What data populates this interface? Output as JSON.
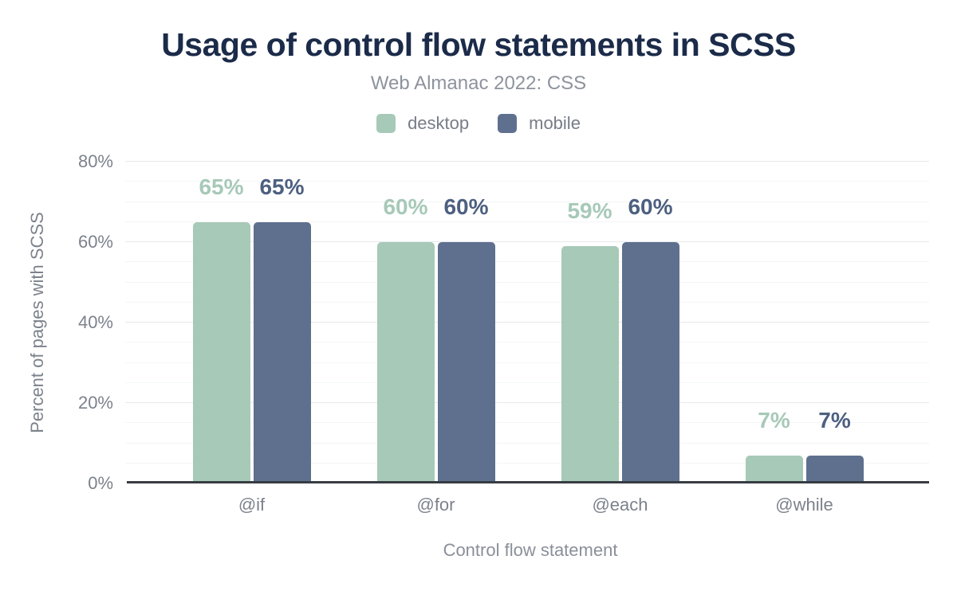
{
  "chart": {
    "title": "Usage of control flow statements in SCSS",
    "subtitle": "Web Almanac 2022: CSS",
    "legend": [
      {
        "label": "desktop",
        "color": "#a7c9b8"
      },
      {
        "label": "mobile",
        "color": "#5e708e"
      }
    ],
    "y_axis": {
      "title": "Percent of pages with SCSS",
      "ticks": [
        "0%",
        "20%",
        "40%",
        "60%",
        "80%"
      ],
      "tick_values": [
        0,
        20,
        40,
        60,
        80
      ]
    },
    "x_axis": {
      "title": "Control flow statement"
    },
    "colors": {
      "title_text": "#1b2b49",
      "subtitle_text": "#8d939d",
      "axis_text": "#7c828c",
      "axis_line": "#363c41",
      "gridline_major": "#e7e9ec",
      "gridline_minor": "#f4f5f7",
      "desktop_bar": "#a7c9b8",
      "mobile_bar": "#5e708e",
      "desktop_label": "#a7c9b8",
      "mobile_label": "#4d6080"
    }
  },
  "chart_data": {
    "type": "bar",
    "title": "Usage of control flow statements in SCSS",
    "subtitle": "Web Almanac 2022: CSS",
    "categories": [
      "@if",
      "@for",
      "@each",
      "@while"
    ],
    "series": [
      {
        "name": "desktop",
        "color": "#a7c9b8",
        "label_color": "#a7c9b8",
        "values": [
          65,
          60,
          59,
          7
        ],
        "labels": [
          "65%",
          "60%",
          "59%",
          "7%"
        ]
      },
      {
        "name": "mobile",
        "color": "#5e708e",
        "label_color": "#4d6080",
        "values": [
          65,
          60,
          60,
          7
        ],
        "labels": [
          "65%",
          "60%",
          "60%",
          "7%"
        ]
      }
    ],
    "xlabel": "Control flow statement",
    "ylabel": "Percent of pages with SCSS",
    "ylim": [
      0,
      80
    ],
    "ytick_step_major": 20,
    "ytick_step_minor": 5,
    "grid": true,
    "legend_position": "top",
    "bar_value_labels": true
  }
}
